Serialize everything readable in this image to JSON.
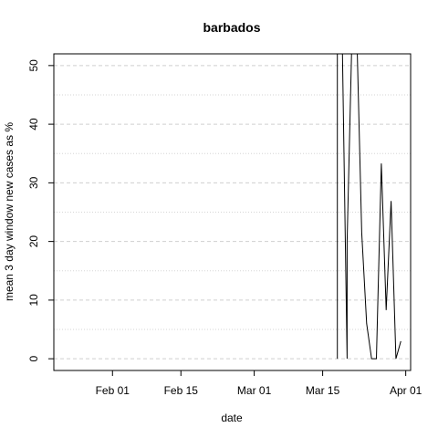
{
  "chart_data": {
    "type": "line",
    "title": "barbados",
    "xlabel": "date",
    "ylabel": "mean  3  day window new cases as %",
    "ylim": [
      -2,
      52
    ],
    "xlim": [
      "2020-01-20",
      "2020-04-02"
    ],
    "grid": true,
    "y_ticks": [
      0,
      10,
      20,
      30,
      40,
      50
    ],
    "y_minor_grid": [
      5,
      15,
      25,
      35,
      45
    ],
    "x_ticks": [
      {
        "date": "2020-02-01",
        "label": "Feb 01"
      },
      {
        "date": "2020-02-15",
        "label": "Feb 15"
      },
      {
        "date": "2020-03-01",
        "label": "Mar 01"
      },
      {
        "date": "2020-03-15",
        "label": "Mar 15"
      },
      {
        "date": "2020-04-01",
        "label": "Apr 01"
      }
    ],
    "series": [
      {
        "x": [
          "2020-03-18",
          "2020-03-18",
          "2020-03-19",
          "2020-03-20",
          "2020-03-20",
          "2020-03-21",
          "2020-03-22",
          "2020-03-23",
          "2020-03-24",
          "2020-03-25",
          "2020-03-26",
          "2020-03-27",
          "2020-03-28",
          "2020-03-29",
          "2020-03-30",
          "2020-03-31"
        ],
        "y": [
          0,
          55,
          55,
          0,
          20,
          55,
          55,
          21.5,
          6,
          0,
          0,
          33.3,
          8.3,
          26.9,
          0,
          3
        ]
      }
    ]
  }
}
